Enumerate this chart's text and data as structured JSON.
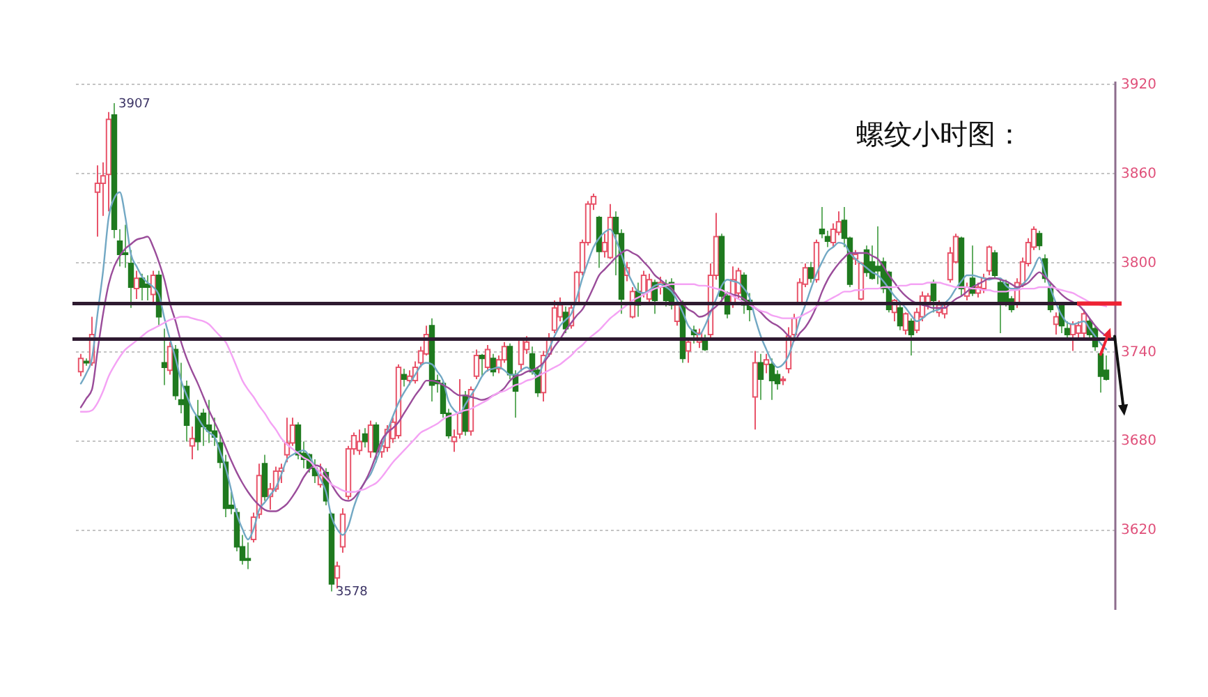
{
  "chart_data": {
    "type": "candlestick",
    "title": "螺纹小时图：",
    "categories": [
      null,
      null,
      null,
      null,
      null,
      null,
      null,
      null,
      null,
      null,
      null,
      null,
      null,
      null,
      null,
      null,
      null,
      null,
      null,
      null,
      null,
      null,
      null,
      null,
      null,
      null,
      null,
      null,
      null,
      null,
      null,
      null,
      null,
      null,
      null,
      null,
      null,
      null,
      null,
      null,
      null,
      null,
      null,
      null,
      null,
      null,
      null,
      null,
      null,
      null,
      null,
      null,
      null,
      null,
      null,
      null,
      null,
      null,
      null,
      null,
      null,
      null,
      null,
      null,
      null,
      null,
      null,
      null,
      null,
      null,
      null,
      null,
      null,
      null,
      null,
      null,
      null,
      null,
      null,
      null,
      null,
      null,
      null,
      null,
      null,
      null,
      null,
      null,
      null,
      null,
      null,
      null,
      null,
      null,
      null,
      null,
      null,
      null,
      null,
      null,
      null,
      null,
      null,
      null,
      null,
      null,
      null,
      null,
      null,
      null,
      null,
      null,
      null,
      null,
      null,
      null,
      null,
      null,
      null,
      null,
      null,
      null,
      null,
      null,
      null,
      null,
      null,
      null,
      null,
      null,
      null,
      null,
      null,
      null,
      null,
      null,
      null,
      null,
      null,
      null,
      null,
      null,
      null,
      null,
      null,
      null,
      null,
      null,
      null,
      null,
      null,
      null,
      null,
      null,
      null,
      null,
      null,
      null,
      null,
      null,
      null,
      null,
      null,
      null,
      null,
      null,
      null,
      null,
      null,
      null,
      null,
      null,
      null,
      null,
      null,
      null,
      null,
      null,
      null,
      null,
      null,
      null,
      null,
      null,
      null
    ],
    "ohlc": [
      [
        3726,
        3738,
        3723,
        3735
      ],
      [
        3733,
        3735,
        3730,
        3732
      ],
      [
        3732,
        3763,
        3730,
        3751
      ],
      [
        3847,
        3865,
        3817,
        3853
      ],
      [
        3853,
        3867,
        3831,
        3858
      ],
      [
        3859,
        3901,
        3834,
        3896
      ],
      [
        3899,
        3907,
        3816,
        3822
      ],
      [
        3814,
        3822,
        3797,
        3805
      ],
      [
        3806,
        3825,
        3796,
        3805
      ],
      [
        3799,
        3808,
        3769,
        3783
      ],
      [
        3782,
        3794,
        3775,
        3789
      ],
      [
        3789,
        3792,
        3774,
        3783
      ],
      [
        3785,
        3791,
        3774,
        3783
      ],
      [
        3778,
        3794,
        3772,
        3791
      ],
      [
        3791,
        3794,
        3757,
        3763
      ],
      [
        3732,
        3755,
        3717,
        3729
      ],
      [
        3727,
        3746,
        3724,
        3743
      ],
      [
        3741,
        3744,
        3707,
        3710
      ],
      [
        3707,
        3732,
        3698,
        3704
      ],
      [
        3716,
        3720,
        3679,
        3690
      ],
      [
        3676,
        3689,
        3667,
        3681
      ],
      [
        3696,
        3707,
        3673,
        3679
      ],
      [
        3698,
        3701,
        3676,
        3689
      ],
      [
        3690,
        3707,
        3678,
        3686
      ],
      [
        3686,
        3695,
        3676,
        3682
      ],
      [
        3678,
        3685,
        3661,
        3665
      ],
      [
        3665,
        3670,
        3628,
        3634
      ],
      [
        3636,
        3645,
        3630,
        3634
      ],
      [
        3631,
        3634,
        3605,
        3608
      ],
      [
        3608,
        3616,
        3596,
        3599
      ],
      [
        3600,
        3611,
        3593,
        3599
      ],
      [
        3613,
        3631,
        3611,
        3628
      ],
      [
        3630,
        3664,
        3627,
        3656
      ],
      [
        3664,
        3670,
        3639,
        3642
      ],
      [
        3642,
        3651,
        3633,
        3647
      ],
      [
        3647,
        3662,
        3645,
        3659
      ],
      [
        3659,
        3664,
        3651,
        3661
      ],
      [
        3670,
        3695,
        3665,
        3678
      ],
      [
        3678,
        3695,
        3676,
        3690
      ],
      [
        3690,
        3692,
        3667,
        3670
      ],
      [
        3671,
        3679,
        3661,
        3667
      ],
      [
        3670,
        3671,
        3658,
        3661
      ],
      [
        3661,
        3667,
        3651,
        3656
      ],
      [
        3650,
        3664,
        3648,
        3656
      ],
      [
        3658,
        3661,
        3636,
        3639
      ],
      [
        3630,
        3631,
        3578,
        3583
      ],
      [
        3587,
        3598,
        3580,
        3595
      ],
      [
        3608,
        3634,
        3604,
        3630
      ],
      [
        3642,
        3676,
        3640,
        3674
      ],
      [
        3674,
        3685,
        3670,
        3683
      ],
      [
        3673,
        3687,
        3670,
        3679
      ],
      [
        3684,
        3688,
        3675,
        3679
      ],
      [
        3672,
        3693,
        3668,
        3690
      ],
      [
        3690,
        3692,
        3665,
        3672
      ],
      [
        3672,
        3680,
        3668,
        3676
      ],
      [
        3675,
        3690,
        3672,
        3687
      ],
      [
        3681,
        3695,
        3678,
        3692
      ],
      [
        3683,
        3731,
        3681,
        3729
      ],
      [
        3724,
        3728,
        3716,
        3721
      ],
      [
        3720,
        3727,
        3717,
        3723
      ],
      [
        3720,
        3733,
        3718,
        3729
      ],
      [
        3732,
        3743,
        3729,
        3740
      ],
      [
        3738,
        3757,
        3737,
        3751
      ],
      [
        3757,
        3762,
        3706,
        3717
      ],
      [
        3720,
        3724,
        3712,
        3718
      ],
      [
        3718,
        3720,
        3695,
        3698
      ],
      [
        3698,
        3701,
        3681,
        3683
      ],
      [
        3679,
        3687,
        3672,
        3682
      ],
      [
        3684,
        3721,
        3681,
        3698
      ],
      [
        3710,
        3713,
        3683,
        3686
      ],
      [
        3686,
        3716,
        3683,
        3714
      ],
      [
        3723,
        3741,
        3721,
        3737
      ],
      [
        3737,
        3738,
        3723,
        3735
      ],
      [
        3729,
        3744,
        3726,
        3741
      ],
      [
        3735,
        3738,
        3723,
        3726
      ],
      [
        3728,
        3737,
        3725,
        3734
      ],
      [
        3734,
        3746,
        3732,
        3743
      ],
      [
        3743,
        3745,
        3721,
        3724
      ],
      [
        3724,
        3727,
        3695,
        3713
      ],
      [
        3731,
        3749,
        3726,
        3748
      ],
      [
        3741,
        3750,
        3738,
        3746
      ],
      [
        3738,
        3743,
        3724,
        3726
      ],
      [
        3727,
        3729,
        3709,
        3712
      ],
      [
        3712,
        3740,
        3706,
        3737
      ],
      [
        3738,
        3752,
        3736,
        3748
      ],
      [
        3754,
        3774,
        3752,
        3769
      ],
      [
        3763,
        3776,
        3760,
        3771
      ],
      [
        3766,
        3770,
        3752,
        3755
      ],
      [
        3757,
        3772,
        3755,
        3769
      ],
      [
        3772,
        3794,
        3771,
        3793
      ],
      [
        3793,
        3815,
        3791,
        3813
      ],
      [
        3813,
        3841,
        3811,
        3839
      ],
      [
        3839,
        3846,
        3835,
        3844
      ],
      [
        3830,
        3831,
        3796,
        3807
      ],
      [
        3807,
        3819,
        3803,
        3813
      ],
      [
        3803,
        3839,
        3802,
        3830
      ],
      [
        3830,
        3834,
        3791,
        3819
      ],
      [
        3819,
        3822,
        3765,
        3775
      ],
      [
        3791,
        3800,
        3787,
        3796
      ],
      [
        3763,
        3783,
        3762,
        3780
      ],
      [
        3780,
        3786,
        3763,
        3771
      ],
      [
        3779,
        3794,
        3776,
        3791
      ],
      [
        3775,
        3792,
        3772,
        3788
      ],
      [
        3786,
        3788,
        3765,
        3774
      ],
      [
        3783,
        3790,
        3778,
        3786
      ],
      [
        3785,
        3788,
        3770,
        3774
      ],
      [
        3786,
        3789,
        3768,
        3771
      ],
      [
        3760,
        3774,
        3757,
        3771
      ],
      [
        3771,
        3774,
        3732,
        3735
      ],
      [
        3740,
        3748,
        3732,
        3746
      ],
      [
        3754,
        3757,
        3745,
        3751
      ],
      [
        3746,
        3755,
        3742,
        3752
      ],
      [
        3748,
        3751,
        3740,
        3741
      ],
      [
        3751,
        3799,
        3749,
        3791
      ],
      [
        3791,
        3833,
        3788,
        3817
      ],
      [
        3817,
        3819,
        3772,
        3777
      ],
      [
        3777,
        3780,
        3762,
        3765
      ],
      [
        3772,
        3797,
        3769,
        3788
      ],
      [
        3779,
        3796,
        3775,
        3794
      ],
      [
        3791,
        3793,
        3765,
        3771
      ],
      [
        3774,
        3779,
        3760,
        3768
      ],
      [
        3709,
        3740,
        3687,
        3732
      ],
      [
        3732,
        3738,
        3707,
        3721
      ],
      [
        3731,
        3738,
        3725,
        3734
      ],
      [
        3731,
        3735,
        3707,
        3720
      ],
      [
        3724,
        3727,
        3714,
        3718
      ],
      [
        3720,
        3723,
        3717,
        3721
      ],
      [
        3728,
        3756,
        3725,
        3750
      ],
      [
        3751,
        3765,
        3749,
        3762
      ],
      [
        3772,
        3789,
        3771,
        3786
      ],
      [
        3785,
        3799,
        3783,
        3796
      ],
      [
        3796,
        3800,
        3786,
        3789
      ],
      [
        3788,
        3815,
        3786,
        3813
      ],
      [
        3822,
        3837,
        3816,
        3819
      ],
      [
        3817,
        3821,
        3810,
        3814
      ],
      [
        3813,
        3826,
        3810,
        3822
      ],
      [
        3820,
        3834,
        3818,
        3827
      ],
      [
        3828,
        3837,
        3810,
        3816
      ],
      [
        3816,
        3817,
        3783,
        3785
      ],
      [
        3802,
        3808,
        3798,
        3805
      ],
      [
        3775,
        3800,
        3774,
        3799
      ],
      [
        3808,
        3811,
        3790,
        3793
      ],
      [
        3800,
        3811,
        3788,
        3789
      ],
      [
        3797,
        3824,
        3785,
        3794
      ],
      [
        3800,
        3803,
        3779,
        3782
      ],
      [
        3793,
        3794,
        3766,
        3768
      ],
      [
        3766,
        3775,
        3760,
        3774
      ],
      [
        3769,
        3771,
        3754,
        3757
      ],
      [
        3754,
        3766,
        3751,
        3765
      ],
      [
        3760,
        3762,
        3737,
        3751
      ],
      [
        3754,
        3769,
        3752,
        3766
      ],
      [
        3763,
        3780,
        3760,
        3777
      ],
      [
        3771,
        3779,
        3768,
        3777
      ],
      [
        3786,
        3788,
        3766,
        3774
      ],
      [
        3766,
        3774,
        3763,
        3771
      ],
      [
        3765,
        3772,
        3762,
        3769
      ],
      [
        3788,
        3810,
        3786,
        3806
      ],
      [
        3800,
        3819,
        3799,
        3817
      ],
      [
        3816,
        3817,
        3777,
        3782
      ],
      [
        3777,
        3786,
        3774,
        3783
      ],
      [
        3789,
        3811,
        3777,
        3779
      ],
      [
        3779,
        3786,
        3776,
        3783
      ],
      [
        3782,
        3792,
        3779,
        3789
      ],
      [
        3794,
        3811,
        3791,
        3810
      ],
      [
        3806,
        3808,
        3789,
        3791
      ],
      [
        3786,
        3788,
        3752,
        3772
      ],
      [
        3785,
        3788,
        3770,
        3772
      ],
      [
        3775,
        3777,
        3766,
        3768
      ],
      [
        3772,
        3789,
        3769,
        3786
      ],
      [
        3785,
        3803,
        3783,
        3800
      ],
      [
        3799,
        3816,
        3797,
        3813
      ],
      [
        3810,
        3824,
        3808,
        3822
      ],
      [
        3819,
        3821,
        3808,
        3811
      ],
      [
        3802,
        3805,
        3786,
        3789
      ],
      [
        3783,
        3786,
        3766,
        3768
      ],
      [
        3758,
        3766,
        3751,
        3763
      ],
      [
        3771,
        3772,
        3752,
        3757
      ],
      [
        3755,
        3760,
        3749,
        3751
      ],
      [
        3751,
        3760,
        3740,
        3758
      ],
      [
        3752,
        3760,
        3749,
        3757
      ],
      [
        3752,
        3768,
        3749,
        3765
      ],
      [
        3760,
        3762,
        3748,
        3751
      ],
      [
        3755,
        3757,
        3740,
        3743
      ],
      [
        3738,
        3740,
        3712,
        3723
      ],
      [
        3727,
        3737,
        3720,
        3721
      ]
    ],
    "series": [
      {
        "type": "line",
        "color": "#72a8c4",
        "values": [
          3718,
          3725,
          3735,
          3765,
          3794,
          3830,
          3843,
          3847,
          3830,
          3805,
          3797,
          3790,
          3786,
          3783,
          3778,
          3762,
          3748,
          3735,
          3720,
          3710,
          3701,
          3695,
          3689,
          3685,
          3682,
          3672,
          3661,
          3646,
          3630,
          3620,
          3613,
          3620,
          3633,
          3638,
          3643,
          3648,
          3657,
          3667,
          3670,
          3672,
          3673,
          3669,
          3662,
          3654,
          3645,
          3628,
          3620,
          3616,
          3622,
          3635,
          3645,
          3652,
          3657,
          3666,
          3676,
          3686,
          3696,
          3705,
          3712,
          3718,
          3724,
          3730,
          3732,
          3731,
          3726,
          3720,
          3706,
          3700,
          3698,
          3704,
          3710,
          3716,
          3723,
          3727,
          3728,
          3729,
          3727,
          3724,
          3724,
          3727,
          3729,
          3726,
          3723,
          3732,
          3741,
          3750,
          3757,
          3761,
          3765,
          3776,
          3789,
          3800,
          3810,
          3816,
          3820,
          3822,
          3815,
          3805,
          3794,
          3786,
          3780,
          3779,
          3781,
          3784,
          3785,
          3783,
          3780,
          3774,
          3766,
          3757,
          3753,
          3751,
          3757,
          3766,
          3775,
          3784,
          3788,
          3787,
          3786,
          3782,
          3776,
          3762,
          3750,
          3741,
          3733,
          3729,
          3731,
          3737,
          3748,
          3761,
          3771,
          3782,
          3792,
          3800,
          3807,
          3810,
          3813,
          3812,
          3806,
          3802,
          3799,
          3796,
          3793,
          3791,
          3787,
          3782,
          3777,
          3773,
          3769,
          3764,
          3760,
          3762,
          3765,
          3767,
          3768,
          3772,
          3776,
          3782,
          3787,
          3791,
          3791,
          3790,
          3789,
          3788,
          3789,
          3789,
          3784,
          3782,
          3782,
          3785,
          3789,
          3796,
          3803,
          3793,
          3782,
          3772,
          3764,
          3759,
          3758,
          3759,
          3760,
          3755,
          3750,
          3745,
          3741
        ]
      },
      {
        "type": "line",
        "color": "#9a4c9a",
        "values": [
          3702,
          3708,
          3714,
          3740,
          3765,
          3785,
          3797,
          3804,
          3809,
          3812,
          3815,
          3816,
          3817,
          3810,
          3800,
          3788,
          3772,
          3760,
          3746,
          3735,
          3726,
          3718,
          3709,
          3700,
          3692,
          3684,
          3675,
          3666,
          3658,
          3651,
          3645,
          3640,
          3636,
          3633,
          3632,
          3632,
          3634,
          3637,
          3642,
          3648,
          3655,
          3660,
          3663,
          3662,
          3657,
          3650,
          3644,
          3640,
          3639,
          3641,
          3646,
          3652,
          3660,
          3670,
          3680,
          3685,
          3688,
          3692,
          3698,
          3704,
          3710,
          3715,
          3720,
          3720,
          3719,
          3717,
          3715,
          3712,
          3710,
          3710,
          3709,
          3708,
          3707,
          3708,
          3710,
          3712,
          3715,
          3720,
          3723,
          3724,
          3726,
          3727,
          3729,
          3732,
          3737,
          3743,
          3748,
          3754,
          3759,
          3764,
          3768,
          3775,
          3783,
          3791,
          3795,
          3799,
          3803,
          3806,
          3808,
          3806,
          3804,
          3800,
          3796,
          3791,
          3788,
          3785,
          3782,
          3777,
          3772,
          3768,
          3766,
          3763,
          3764,
          3767,
          3770,
          3774,
          3779,
          3778,
          3777,
          3775,
          3772,
          3769,
          3766,
          3762,
          3759,
          3757,
          3754,
          3750,
          3747,
          3752,
          3756,
          3762,
          3770,
          3780,
          3788,
          3794,
          3799,
          3803,
          3806,
          3806,
          3806,
          3806,
          3804,
          3802,
          3797,
          3791,
          3786,
          3781,
          3777,
          3774,
          3772,
          3771,
          3770,
          3769,
          3769,
          3769,
          3772,
          3775,
          3777,
          3780,
          3783,
          3785,
          3787,
          3789,
          3789,
          3788,
          3787,
          3785,
          3783,
          3784,
          3786,
          3790,
          3793,
          3790,
          3786,
          3782,
          3778,
          3775,
          3773,
          3771,
          3767,
          3762,
          3757,
          3753,
          3750
        ]
      },
      {
        "type": "line",
        "color": "#f4a2f4",
        "values": [
          3699,
          3699,
          3700,
          3705,
          3713,
          3723,
          3730,
          3736,
          3741,
          3744,
          3747,
          3750,
          3753,
          3755,
          3757,
          3759,
          3761,
          3762,
          3763,
          3763,
          3762,
          3761,
          3760,
          3758,
          3754,
          3750,
          3746,
          3738,
          3729,
          3720,
          3714,
          3709,
          3703,
          3698,
          3692,
          3687,
          3681,
          3677,
          3674,
          3671,
          3668,
          3666,
          3662,
          3658,
          3654,
          3650,
          3648,
          3646,
          3645,
          3645,
          3646,
          3647,
          3649,
          3651,
          3655,
          3660,
          3665,
          3669,
          3673,
          3677,
          3681,
          3685,
          3687,
          3689,
          3691,
          3694,
          3696,
          3697,
          3699,
          3700,
          3701,
          3703,
          3705,
          3707,
          3710,
          3712,
          3713,
          3715,
          3717,
          3718,
          3720,
          3721,
          3723,
          3725,
          3727,
          3729,
          3731,
          3734,
          3737,
          3741,
          3744,
          3748,
          3751,
          3754,
          3758,
          3762,
          3765,
          3768,
          3771,
          3774,
          3776,
          3778,
          3780,
          3782,
          3783,
          3784,
          3785,
          3785,
          3785,
          3785,
          3785,
          3784,
          3784,
          3783,
          3782,
          3781,
          3779,
          3777,
          3775,
          3773,
          3771,
          3769,
          3767,
          3766,
          3764,
          3763,
          3762,
          3762,
          3762,
          3763,
          3765,
          3767,
          3770,
          3772,
          3774,
          3776,
          3778,
          3780,
          3780,
          3781,
          3781,
          3782,
          3782,
          3782,
          3783,
          3783,
          3783,
          3784,
          3784,
          3785,
          3785,
          3785,
          3786,
          3786,
          3786,
          3785,
          3784,
          3783,
          3783,
          3783,
          3782,
          3782,
          3781,
          3781,
          3780,
          3780,
          3780,
          3781,
          3781,
          3782,
          3782,
          3782,
          3783,
          3783,
          3783,
          3782,
          3781,
          3780,
          3779,
          3777,
          3775,
          3773,
          3772,
          3771,
          3770
        ]
      }
    ],
    "ylim": [
      3566,
      3922
    ],
    "yticks": [
      3620,
      3680,
      3740,
      3800,
      3860,
      3920
    ],
    "grid": "y",
    "tick_labels": "y",
    "ref_lines": [
      {
        "axis": "y",
        "value": 3772,
        "color": "#2e1a30"
      },
      {
        "axis": "y",
        "value": 3748,
        "color": "#2e1a30"
      }
    ],
    "annotations": [
      "3907",
      "3578"
    ]
  }
}
